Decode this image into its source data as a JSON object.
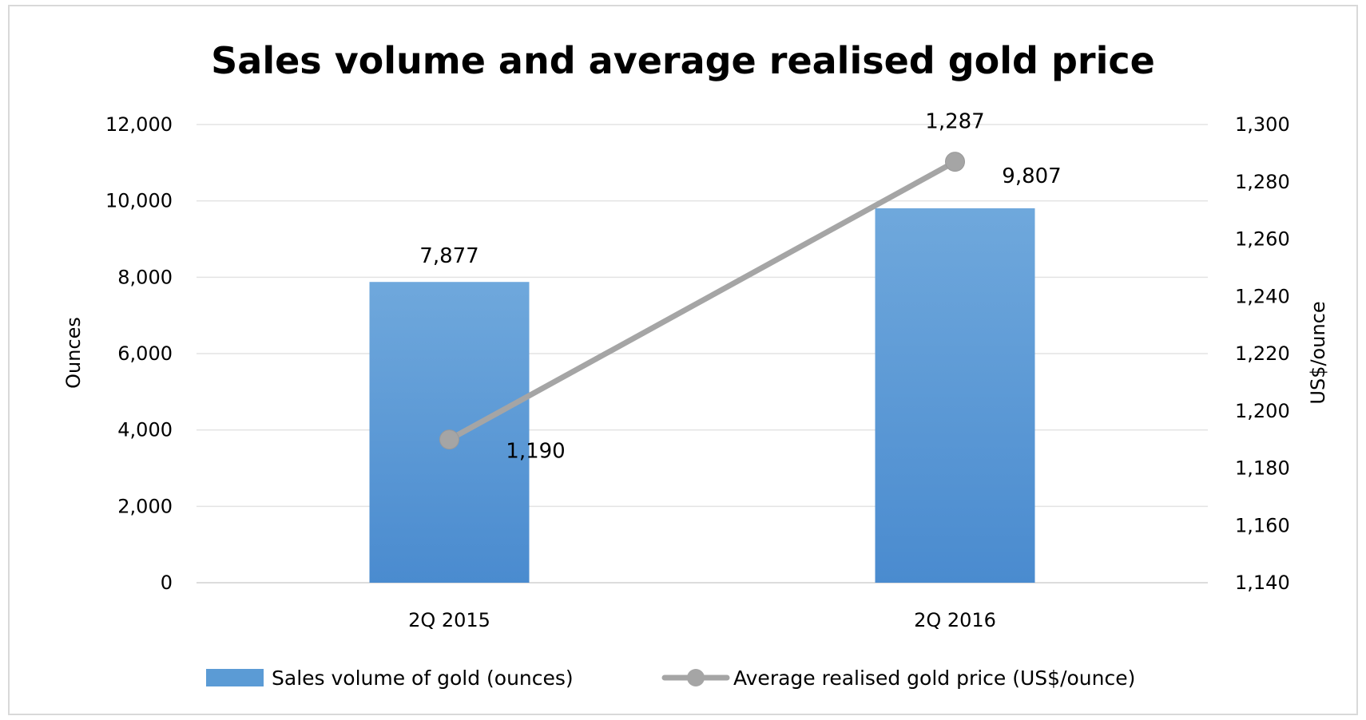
{
  "chart_data": {
    "type": "bar",
    "title": "Sales volume and average realised gold price",
    "categories": [
      "2Q 2015",
      "2Q 2016"
    ],
    "y_left": {
      "label": "Ounces",
      "min": 0,
      "max": 12000,
      "step": 2000,
      "tick_labels": [
        "0",
        "2,000",
        "4,000",
        "6,000",
        "8,000",
        "10,000",
        "12,000"
      ]
    },
    "y_right": {
      "label": "US$/ounce",
      "min": 1140,
      "max": 1300,
      "step": 20,
      "tick_labels": [
        "1,140",
        "1,160",
        "1,180",
        "1,200",
        "1,220",
        "1,240",
        "1,260",
        "1,280",
        "1,300"
      ]
    },
    "series": [
      {
        "name": "Sales volume of gold (ounces)",
        "kind": "bar",
        "axis": "left",
        "color": "#5b9bd5",
        "values": [
          7877,
          9807
        ],
        "labels": [
          "7,877",
          "9,807"
        ]
      },
      {
        "name": "Average realised gold price (US$/ounce)",
        "kind": "line",
        "axis": "right",
        "color": "#a5a5a5",
        "values": [
          1190,
          1287
        ],
        "labels": [
          "1,190",
          "1,287"
        ]
      }
    ],
    "grid": true,
    "legend_position": "bottom"
  }
}
